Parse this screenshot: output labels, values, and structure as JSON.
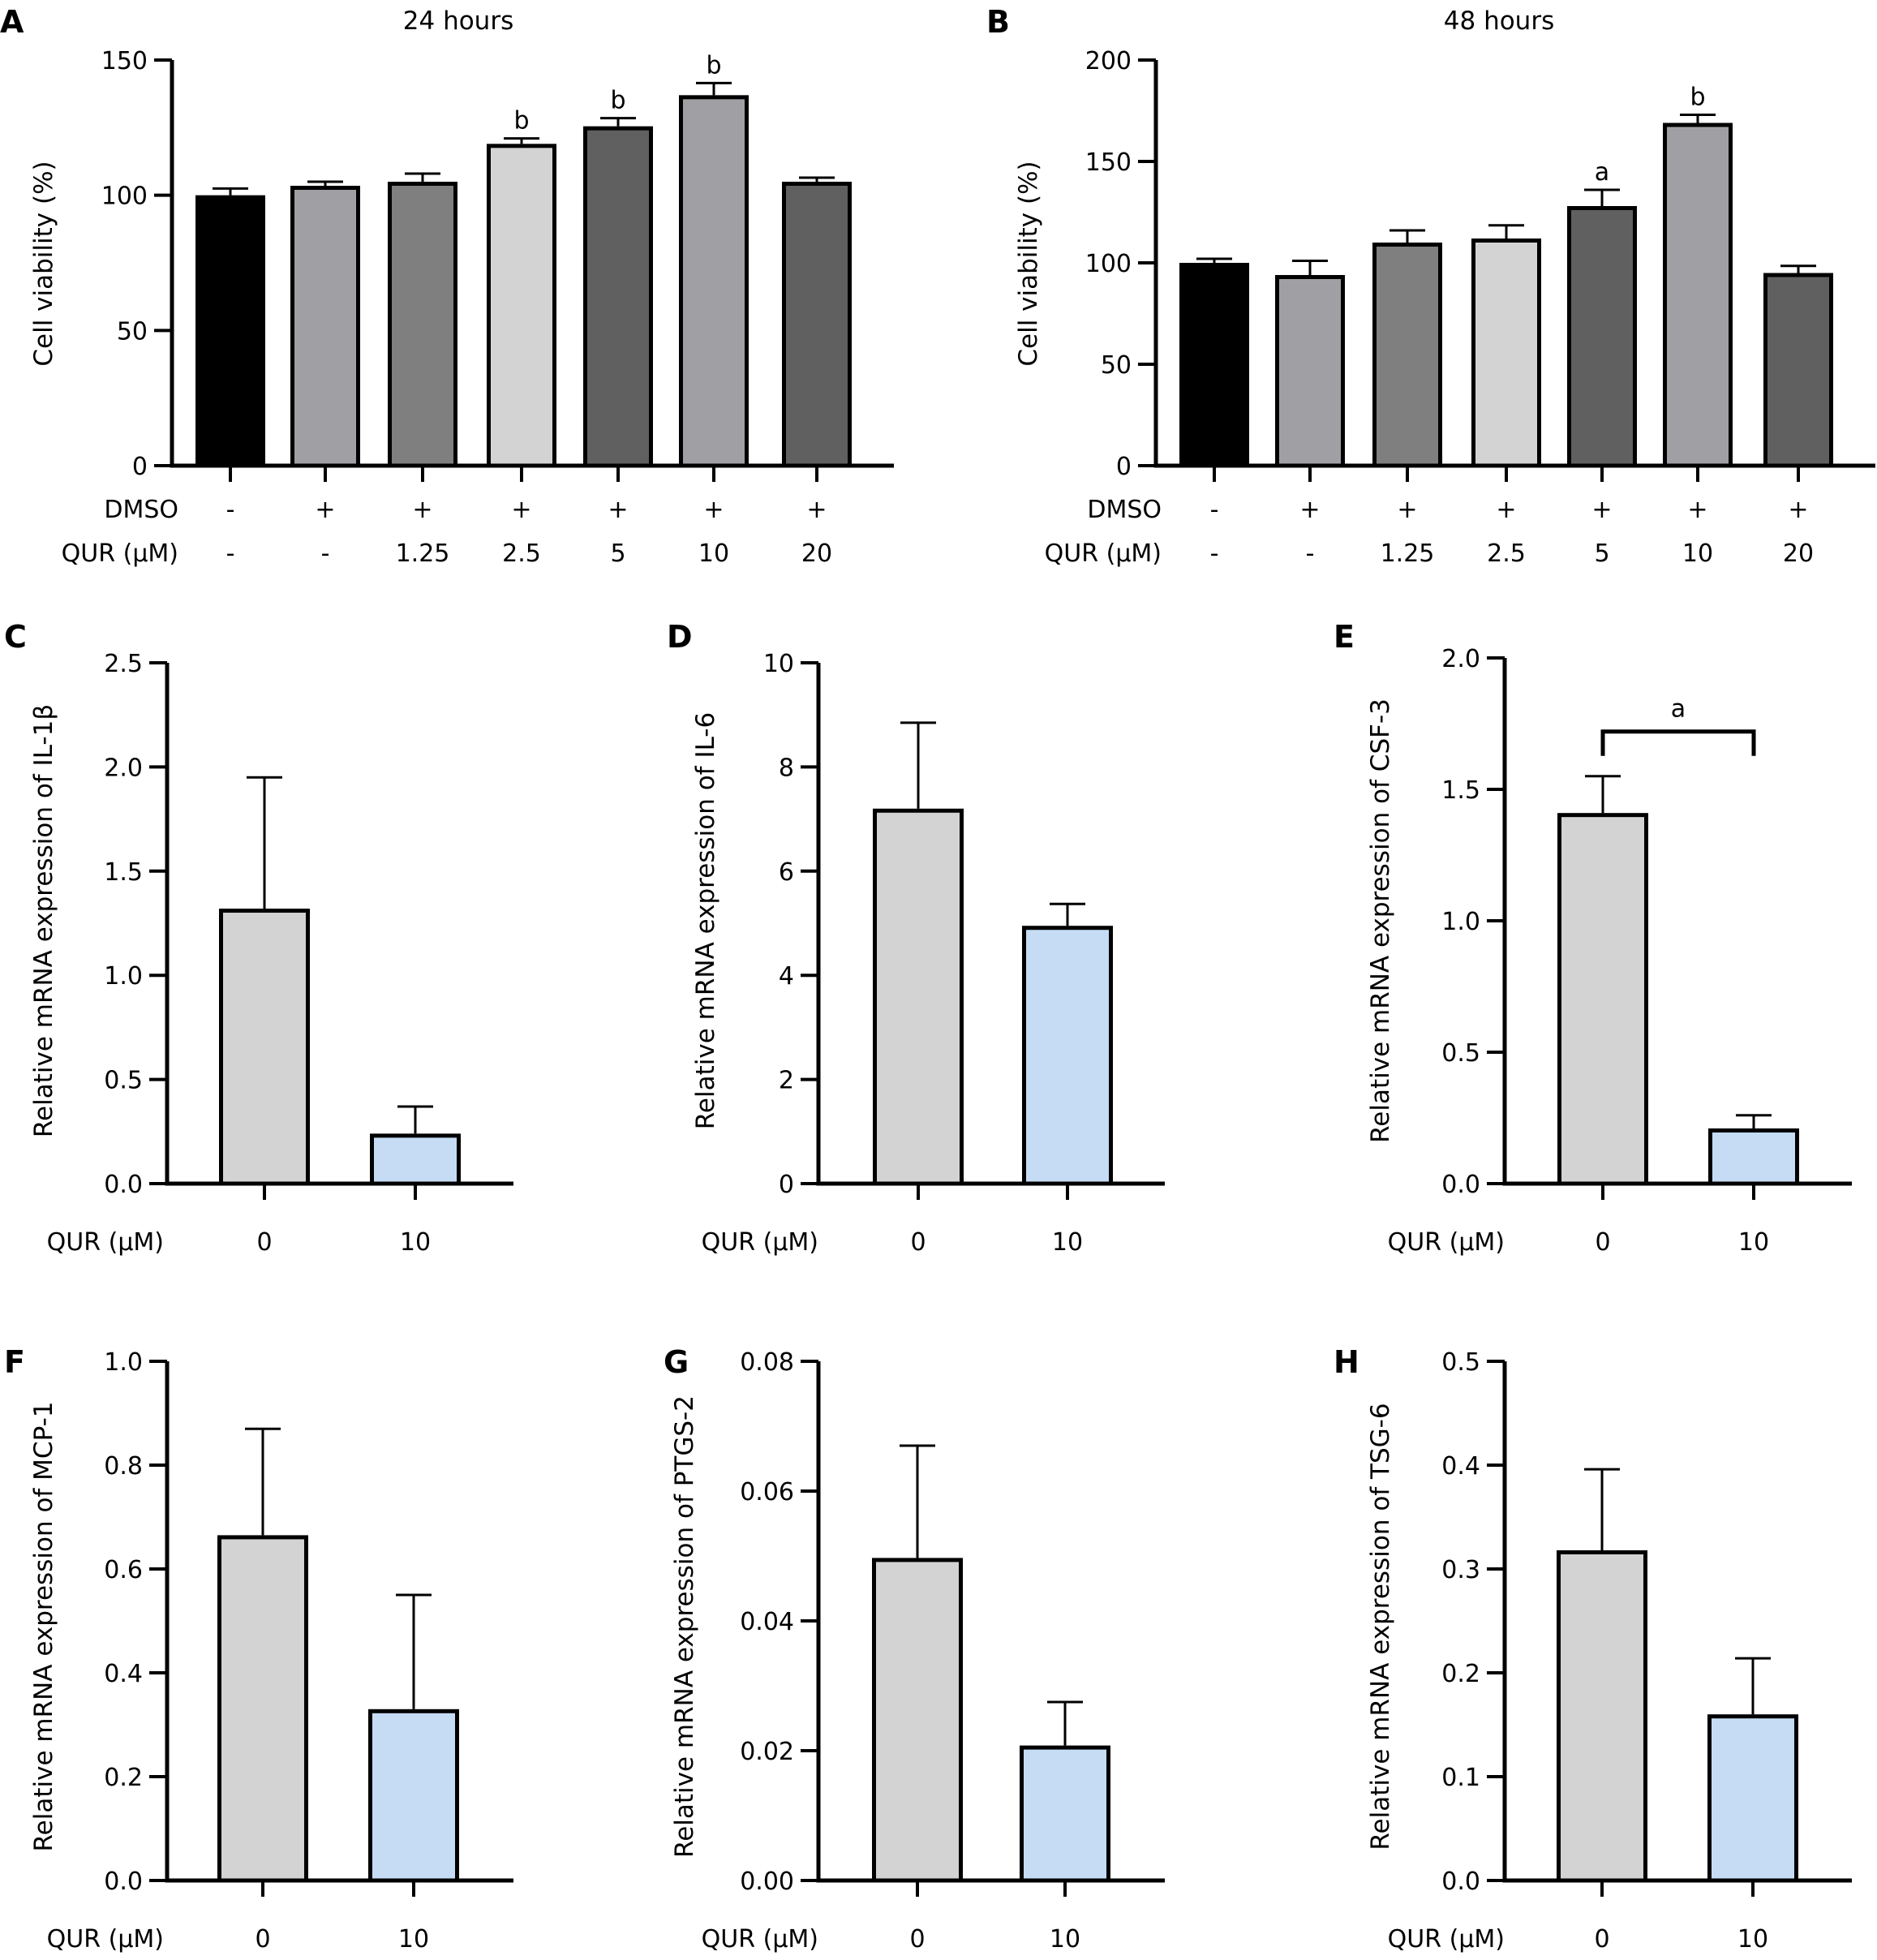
{
  "chart_data": [
    {
      "panel": "A",
      "type": "bar",
      "title": "24 hours",
      "ylabel": "Cell viability (%)",
      "ylim": [
        0,
        150
      ],
      "yticks": [
        "0",
        "50",
        "100",
        "150"
      ],
      "row_labels": [
        "DMSO",
        "QUR (μM)"
      ],
      "categories": [
        [
          "-",
          "-"
        ],
        [
          "+",
          "-"
        ],
        [
          "+",
          "1.25"
        ],
        [
          "+",
          "2.5"
        ],
        [
          "+",
          "5"
        ],
        [
          "+",
          "10"
        ],
        [
          "+",
          "20"
        ]
      ],
      "values": [
        100,
        103.5,
        105,
        119,
        125.5,
        137,
        105
      ],
      "errors": [
        2.5,
        1.5,
        3,
        2,
        3,
        4.5,
        1.5
      ],
      "annotations": [
        "",
        "",
        "",
        "b",
        "b",
        "b",
        ""
      ],
      "colors": [
        "#000000",
        "#a0a0a4",
        "#7f7f7f",
        "#d3d3d3",
        "#606060",
        "#a0a0a4",
        "#606060"
      ]
    },
    {
      "panel": "B",
      "type": "bar",
      "title": "48 hours",
      "ylabel": "Cell viability (%)",
      "ylim": [
        0,
        200
      ],
      "yticks": [
        "0",
        "50",
        "100",
        "150",
        "200"
      ],
      "row_labels": [
        "DMSO",
        "QUR (μM)"
      ],
      "categories": [
        [
          "-",
          "-"
        ],
        [
          "+",
          "-"
        ],
        [
          "+",
          "1.25"
        ],
        [
          "+",
          "2.5"
        ],
        [
          "+",
          "5"
        ],
        [
          "+",
          "10"
        ],
        [
          "+",
          "20"
        ]
      ],
      "values": [
        100,
        94,
        110,
        112,
        128,
        169,
        95
      ],
      "errors": [
        2,
        7,
        6,
        6.5,
        8,
        4,
        3.5
      ],
      "annotations": [
        "",
        "",
        "",
        "",
        "a",
        "b",
        ""
      ],
      "colors": [
        "#000000",
        "#a0a0a4",
        "#7f7f7f",
        "#d3d3d3",
        "#606060",
        "#a0a0a4",
        "#606060"
      ]
    },
    {
      "panel": "C",
      "type": "bar",
      "ylabel": "Relative mRNA expression of IL-1β",
      "ylim": [
        0,
        2.5
      ],
      "yticks": [
        "0.0",
        "0.5",
        "1.0",
        "1.5",
        "2.0",
        "2.5"
      ],
      "row_labels": [
        "QUR (μM)"
      ],
      "categories": [
        [
          "0"
        ],
        [
          "10"
        ]
      ],
      "values": [
        1.32,
        0.24
      ],
      "errors": [
        0.63,
        0.13
      ],
      "annotations": [
        "",
        ""
      ],
      "colors": [
        "#d3d3d3",
        "#c6dcf5"
      ]
    },
    {
      "panel": "D",
      "type": "bar",
      "ylabel": "Relative mRNA expression of IL-6",
      "ylim": [
        0,
        10
      ],
      "yticks": [
        "0",
        "2",
        "4",
        "6",
        "8",
        "10"
      ],
      "row_labels": [
        "QUR (μM)"
      ],
      "categories": [
        [
          "0"
        ],
        [
          "10"
        ]
      ],
      "values": [
        7.2,
        4.95
      ],
      "errors": [
        1.65,
        0.42
      ],
      "annotations": [
        "",
        ""
      ],
      "colors": [
        "#d3d3d3",
        "#c6dcf5"
      ]
    },
    {
      "panel": "E",
      "type": "bar",
      "ylabel": "Relative mRNA expression of CSF-3",
      "ylim": [
        0,
        2.0
      ],
      "yticks": [
        "0.0",
        "0.5",
        "1.0",
        "1.5",
        "2.0"
      ],
      "row_labels": [
        "QUR (μM)"
      ],
      "categories": [
        [
          "0"
        ],
        [
          "10"
        ]
      ],
      "values": [
        1.41,
        0.21
      ],
      "errors": [
        0.14,
        0.05
      ],
      "annotations": [
        "",
        ""
      ],
      "bracket": {
        "label": "a",
        "y": 1.72
      },
      "colors": [
        "#d3d3d3",
        "#c6dcf5"
      ]
    },
    {
      "panel": "F",
      "type": "bar",
      "ylabel": "Relative mRNA expression of MCP-1",
      "ylim": [
        0,
        1.0
      ],
      "yticks": [
        "0.0",
        "0.2",
        "0.4",
        "0.6",
        "0.8",
        "1.0"
      ],
      "row_labels": [
        "QUR (μM)"
      ],
      "categories": [
        [
          "0"
        ],
        [
          "10"
        ]
      ],
      "values": [
        0.665,
        0.33
      ],
      "errors": [
        0.205,
        0.22
      ],
      "annotations": [
        "",
        ""
      ],
      "colors": [
        "#d3d3d3",
        "#c6dcf5"
      ]
    },
    {
      "panel": "G",
      "type": "bar",
      "ylabel": "Relative mRNA expression of PTGS-2",
      "ylim": [
        0,
        0.08
      ],
      "yticks": [
        "0.00",
        "0.02",
        "0.04",
        "0.06",
        "0.08"
      ],
      "row_labels": [
        "QUR (μM)"
      ],
      "categories": [
        [
          "0"
        ],
        [
          "10"
        ]
      ],
      "values": [
        0.0497,
        0.0208
      ],
      "errors": [
        0.0173,
        0.0067
      ],
      "annotations": [
        "",
        ""
      ],
      "colors": [
        "#d3d3d3",
        "#c6dcf5"
      ]
    },
    {
      "panel": "H",
      "type": "bar",
      "ylabel": "Relative mRNA expression of TSG-6",
      "ylim": [
        0,
        0.5
      ],
      "yticks": [
        "0.0",
        "0.1",
        "0.2",
        "0.3",
        "0.4",
        "0.5"
      ],
      "row_labels": [
        "QUR (μM)"
      ],
      "categories": [
        [
          "0"
        ],
        [
          "10"
        ]
      ],
      "values": [
        0.318,
        0.16
      ],
      "errors": [
        0.078,
        0.054
      ],
      "annotations": [
        "",
        ""
      ],
      "colors": [
        "#d3d3d3",
        "#c6dcf5"
      ]
    }
  ]
}
